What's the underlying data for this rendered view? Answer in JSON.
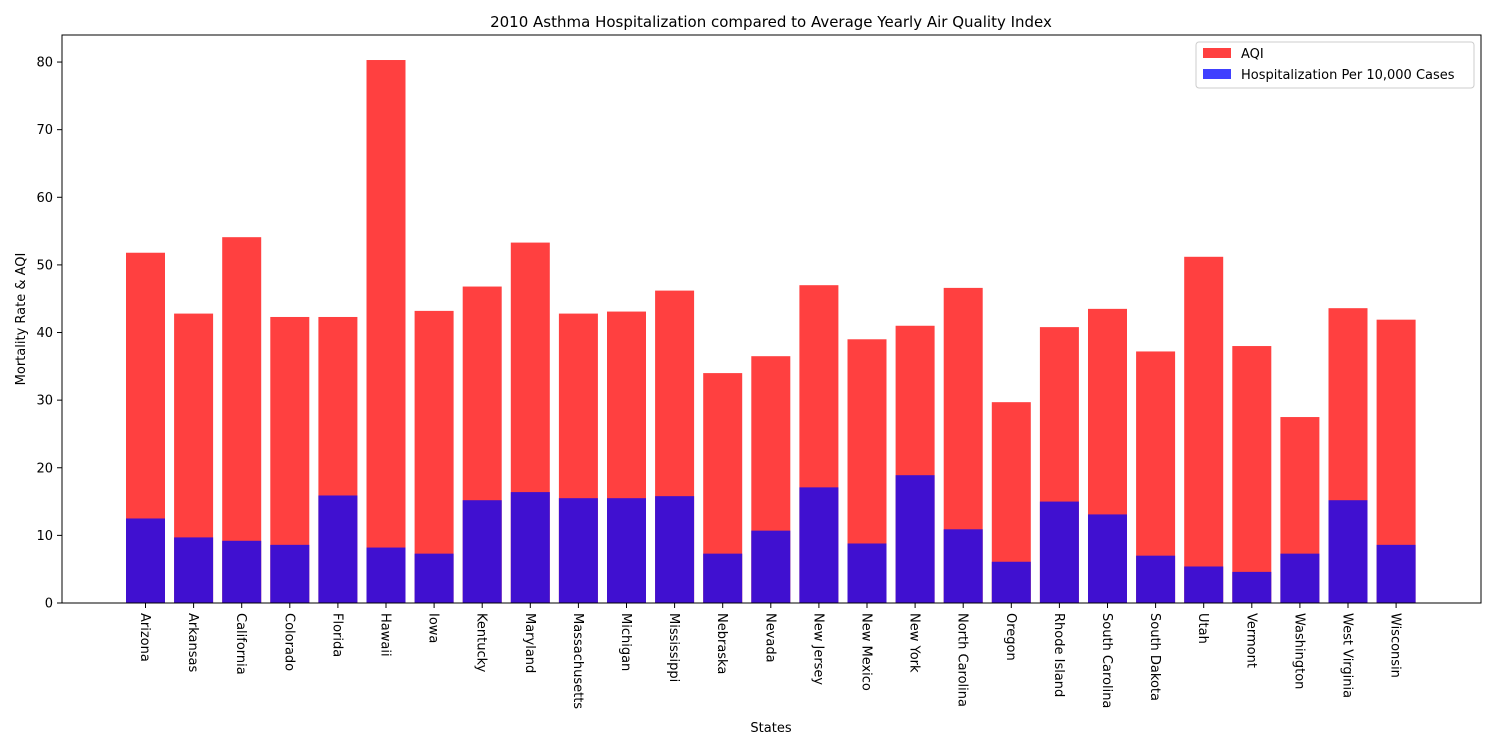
{
  "chart_data": {
    "type": "bar",
    "title": "2010 Asthma Hospitalization compared to Average Yearly Air Quality Index",
    "xlabel": "States",
    "ylabel": "Mortality Rate & AQI",
    "ylim": [
      0,
      84
    ],
    "yticks": [
      0,
      10,
      20,
      30,
      40,
      50,
      60,
      70,
      80
    ],
    "grid": false,
    "legend_position": "top-right",
    "stacking": "overlaid",
    "categories": [
      "Arizona",
      "Arkansas",
      "California",
      "Colorado",
      "Florida",
      "Hawaii",
      "Iowa",
      "Kentucky",
      "Maryland",
      "Massachusetts",
      "Michigan",
      "Mississippi",
      "Nebraska",
      "Nevada",
      "New Jersey",
      "New Mexico",
      "New York",
      "North Carolina",
      "Oregon",
      "Rhode Island",
      "South Carolina",
      "South Dakota",
      "Utah",
      "Vermont",
      "Washington",
      "West Virginia",
      "Wisconsin"
    ],
    "series": [
      {
        "name": "AQI",
        "color": "#ff4040",
        "values": [
          51.8,
          42.8,
          54.1,
          42.3,
          42.3,
          80.3,
          43.2,
          46.8,
          53.3,
          42.8,
          43.1,
          46.2,
          34.0,
          36.5,
          47.0,
          39.0,
          41.0,
          46.6,
          29.7,
          40.8,
          43.5,
          37.2,
          51.2,
          38.0,
          27.5,
          43.6,
          41.9
        ]
      },
      {
        "name": "Hospitalization Per 10,000 Cases",
        "color": "#4040ff",
        "values": [
          12.5,
          9.7,
          9.2,
          8.6,
          15.9,
          8.2,
          7.3,
          15.2,
          16.4,
          15.5,
          15.5,
          15.8,
          7.3,
          10.7,
          17.1,
          8.8,
          18.9,
          10.9,
          6.1,
          15.0,
          13.1,
          7.0,
          5.4,
          4.6,
          7.3,
          15.2,
          8.6
        ]
      }
    ],
    "overlap_color": "#4010d0"
  }
}
